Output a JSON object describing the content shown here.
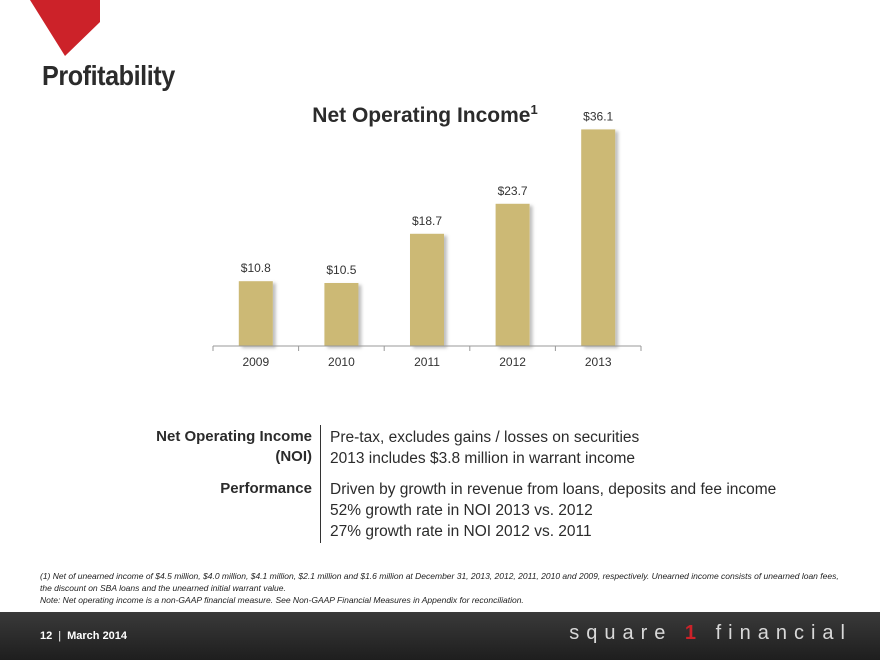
{
  "page": {
    "title": "Profitability",
    "chart_title": "Net Operating Income",
    "chart_title_sup": "1"
  },
  "chart_data": {
    "type": "bar",
    "title": "Net Operating Income",
    "categories": [
      "2009",
      "2010",
      "2011",
      "2012",
      "2013"
    ],
    "values": [
      10.8,
      10.5,
      18.7,
      23.7,
      36.1
    ],
    "data_labels": [
      "$10.8",
      "$10.5",
      "$18.7",
      "$23.7",
      "$36.1"
    ],
    "xlabel": "",
    "ylabel": "",
    "ylim": [
      0,
      40
    ],
    "grid": false,
    "bar_color": "#ccb974"
  },
  "info": {
    "noi_label_line1": "Net Operating Income",
    "noi_label_line2": "(NOI)",
    "noi_text_1": "Pre-tax, excludes gains / losses on securities",
    "noi_text_2": "2013 includes $3.8 million in warrant income",
    "performance_label": "Performance",
    "perf_text_1": "Driven by growth in revenue from loans, deposits and fee income",
    "perf_text_2": "52% growth rate in NOI 2013 vs. 2012",
    "perf_text_3": "27% growth rate in NOI 2012 vs. 2011"
  },
  "footnotes": {
    "note1": "(1) Net of unearned income of $4.5 million, $4.0 million, $4.1 million, $2.1 million and $1.6 million at December 31, 2013, 2012, 2011, 2010 and 2009, respectively. Unearned income consists of unearned loan fees, the discount on SBA loans and the unearned initial warrant value.",
    "note2": "Note: Net operating income is a non-GAAP financial measure. See Non-GAAP Financial Measures in Appendix for reconciliation."
  },
  "footer": {
    "page_number": "12",
    "separator": "|",
    "date": "March 2014",
    "brand_pre": "square",
    "brand_one": "1",
    "brand_post": "financial"
  },
  "colors": {
    "accent": "#cc2229",
    "bar": "#ccb974",
    "footer_bg": "#262626"
  }
}
